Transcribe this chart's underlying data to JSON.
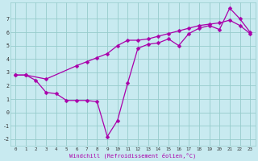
{
  "xlabel": "Windchill (Refroidissement éolien,°C)",
  "ylabel": "",
  "xlim": [
    -0.5,
    23.5
  ],
  "ylim": [
    -2.5,
    8.2
  ],
  "xticks": [
    0,
    1,
    2,
    3,
    4,
    5,
    6,
    7,
    8,
    9,
    10,
    11,
    12,
    13,
    14,
    15,
    16,
    17,
    18,
    19,
    20,
    21,
    22,
    23
  ],
  "yticks": [
    -2,
    -1,
    0,
    1,
    2,
    3,
    4,
    5,
    6,
    7
  ],
  "bg_color": "#c8eaf0",
  "grid_color": "#96cccc",
  "line_color": "#aa00aa",
  "line1_x": [
    0,
    1,
    2,
    3,
    4,
    5,
    6,
    7,
    8,
    9,
    10,
    11,
    12,
    13,
    14,
    15,
    16,
    17,
    18,
    19,
    20,
    21,
    22,
    23
  ],
  "line1_y": [
    2.8,
    2.8,
    2.4,
    1.5,
    1.4,
    0.9,
    0.9,
    0.9,
    0.8,
    -1.8,
    -0.6,
    2.2,
    4.8,
    5.1,
    5.2,
    5.5,
    5.0,
    5.9,
    6.3,
    6.5,
    6.2,
    7.8,
    7.0,
    6.0
  ],
  "line2_x": [
    0,
    1,
    3,
    6,
    7,
    8,
    9,
    10,
    11,
    12,
    13,
    14,
    15,
    16,
    17,
    18,
    19,
    20,
    21,
    22,
    23
  ],
  "line2_y": [
    2.8,
    2.8,
    2.5,
    3.5,
    3.8,
    4.1,
    4.4,
    5.0,
    5.4,
    5.4,
    5.5,
    5.7,
    5.9,
    6.1,
    6.3,
    6.5,
    6.6,
    6.7,
    6.9,
    6.5,
    5.9
  ],
  "marker": "D",
  "marker_size": 2.5,
  "linewidth": 0.9
}
